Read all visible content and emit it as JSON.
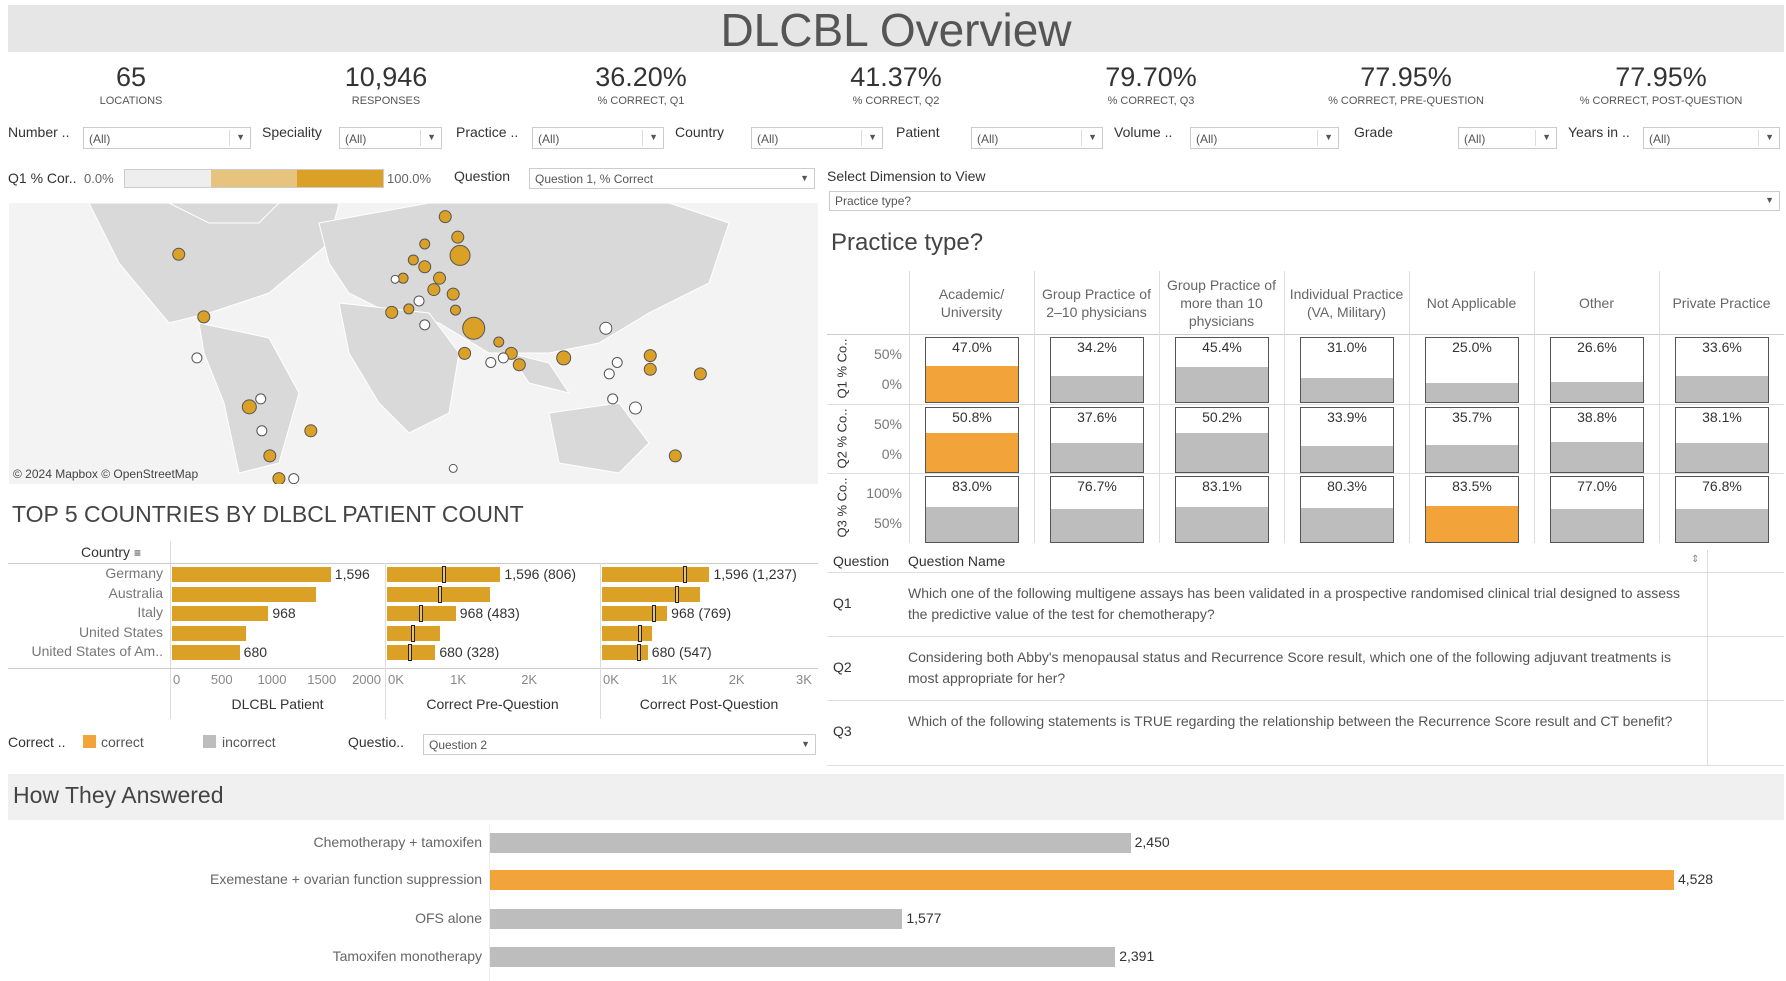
{
  "title": "DLCBL Overview",
  "kpis": [
    {
      "value": "65",
      "label": "LOCATIONS"
    },
    {
      "value": "10,946",
      "label": "RESPONSES"
    },
    {
      "value": "36.20%",
      "label": "% CORRECT, Q1"
    },
    {
      "value": "41.37%",
      "label": "% CORRECT, Q2"
    },
    {
      "value": "79.70%",
      "label": "% CORRECT, Q3"
    },
    {
      "value": "77.95%",
      "label": "% CORRECT, PRE-QUESTION"
    },
    {
      "value": "77.95%",
      "label": "% CORRECT, POST-QUESTION"
    }
  ],
  "filters": [
    {
      "label": "Number ..",
      "value": "(All)"
    },
    {
      "label": "Speciality",
      "value": "(All)"
    },
    {
      "label": "Practice ..",
      "value": "(All)"
    },
    {
      "label": "Country",
      "value": "(All)"
    },
    {
      "label": "Patient",
      "value": "(All)"
    },
    {
      "label": "Volume ..",
      "value": "(All)"
    },
    {
      "label": "Grade",
      "value": "(All)"
    },
    {
      "label": "Years in ..",
      "value": "(All)"
    }
  ],
  "q1_legend": {
    "label": "Q1 % Cor..",
    "min": "0.0%",
    "max": "100.0%",
    "colors": [
      "#eeeeee",
      "#e6c47d",
      "#dba127"
    ]
  },
  "question_filter": {
    "label": "Question",
    "value": "Question 1, % Correct"
  },
  "dimension": {
    "label": "Select Dimension to View",
    "value": "Practice type?"
  },
  "map": {
    "attribution": "© 2024 Mapbox © OpenStreetMap"
  },
  "top5": {
    "title": "TOP 5 COUNTRIES BY DLBCL PATIENT COUNT",
    "country_header": "Country",
    "countries": [
      "Germany",
      "Australia",
      "Italy",
      "United States",
      "United States of Am.."
    ],
    "patients": [
      1596,
      1450,
      968,
      740,
      680
    ],
    "pre_correct": [
      806,
      740,
      483,
      360,
      328
    ],
    "post_correct": [
      1237,
      1120,
      769,
      560,
      547
    ],
    "labels_patient": [
      "1,596",
      "",
      "968",
      "",
      "680"
    ],
    "labels_pre": [
      "1,596 (806)",
      "",
      "968 (483)",
      "",
      "680 (328)"
    ],
    "labels_post": [
      "1,596 (1,237)",
      "",
      "968 (769)",
      "",
      "680 (547)"
    ],
    "axes": [
      {
        "title": "DLCBL Patient",
        "ticks": [
          "0",
          "500",
          "1000",
          "1500",
          "2000"
        ],
        "max": 2000
      },
      {
        "title": "Correct Pre-Question",
        "ticks": [
          "0K",
          "1K",
          "2K"
        ],
        "max": 2800
      },
      {
        "title": "Correct Post-Question",
        "ticks": [
          "0K",
          "1K",
          "2K",
          "3K"
        ],
        "max": 3000
      }
    ],
    "bar_color": "#dba127"
  },
  "legend": {
    "label": "Correct ..",
    "items": [
      {
        "label": "correct",
        "color": "#f2a33a"
      },
      {
        "label": "incorrect",
        "color": "#bdbdbd"
      }
    ]
  },
  "question2_filter": {
    "label": "Questio..",
    "value": "Question 2"
  },
  "practice": {
    "title": "Practice type?",
    "columns": [
      "Academic/ University",
      "Group Practice of 2–10 physicians",
      "Group Practice of more than 10 physicians",
      "Individual Practice (VA, Military)",
      "Not Applicable",
      "Other",
      "Private Practice"
    ],
    "rows": [
      {
        "label": "Q1 % Co..",
        "ticks": [
          "50%",
          "0%"
        ],
        "values": [
          47.0,
          34.2,
          45.4,
          31.0,
          25.0,
          26.6,
          33.6
        ]
      },
      {
        "label": "Q2 % Co..",
        "ticks": [
          "50%",
          "0%"
        ],
        "values": [
          50.8,
          37.6,
          50.2,
          33.9,
          35.7,
          38.8,
          38.1
        ]
      },
      {
        "label": "Q3 % Co..",
        "ticks": [
          "100%",
          "50%"
        ],
        "values": [
          83.0,
          76.7,
          83.1,
          80.3,
          83.5,
          77.0,
          76.8
        ]
      }
    ],
    "highlight": "#f2a33a",
    "bar": "#bdbdbd"
  },
  "questions": {
    "headers": [
      "Question",
      "Question Name"
    ],
    "rows": [
      {
        "id": "Q1",
        "text": "Which one of the following multigene assays has been validated in a prospective randomised clinical trial designed to assess the predictive value of the test for chemotherapy?"
      },
      {
        "id": "Q2",
        "text": "Considering both Abby's menopausal status and Recurrence Score result, which one of the following adjuvant treatments is most appropriate for her?"
      },
      {
        "id": "Q3",
        "text": "Which of the following statements is TRUE regarding the relationship between the Recurrence Score result and CT benefit?"
      }
    ]
  },
  "answers": {
    "title": "How They Answered",
    "items": [
      {
        "label": "Chemotherapy + tamoxifen",
        "value": 2450,
        "display": "2,450",
        "correct": false
      },
      {
        "label": "Exemestane + ovarian function suppression",
        "value": 4528,
        "display": "4,528",
        "correct": true
      },
      {
        "label": "OFS alone",
        "value": 1577,
        "display": "1,577",
        "correct": false
      },
      {
        "label": "Tamoxifen monotherapy",
        "value": 2391,
        "display": "2,391",
        "correct": false
      }
    ]
  }
}
